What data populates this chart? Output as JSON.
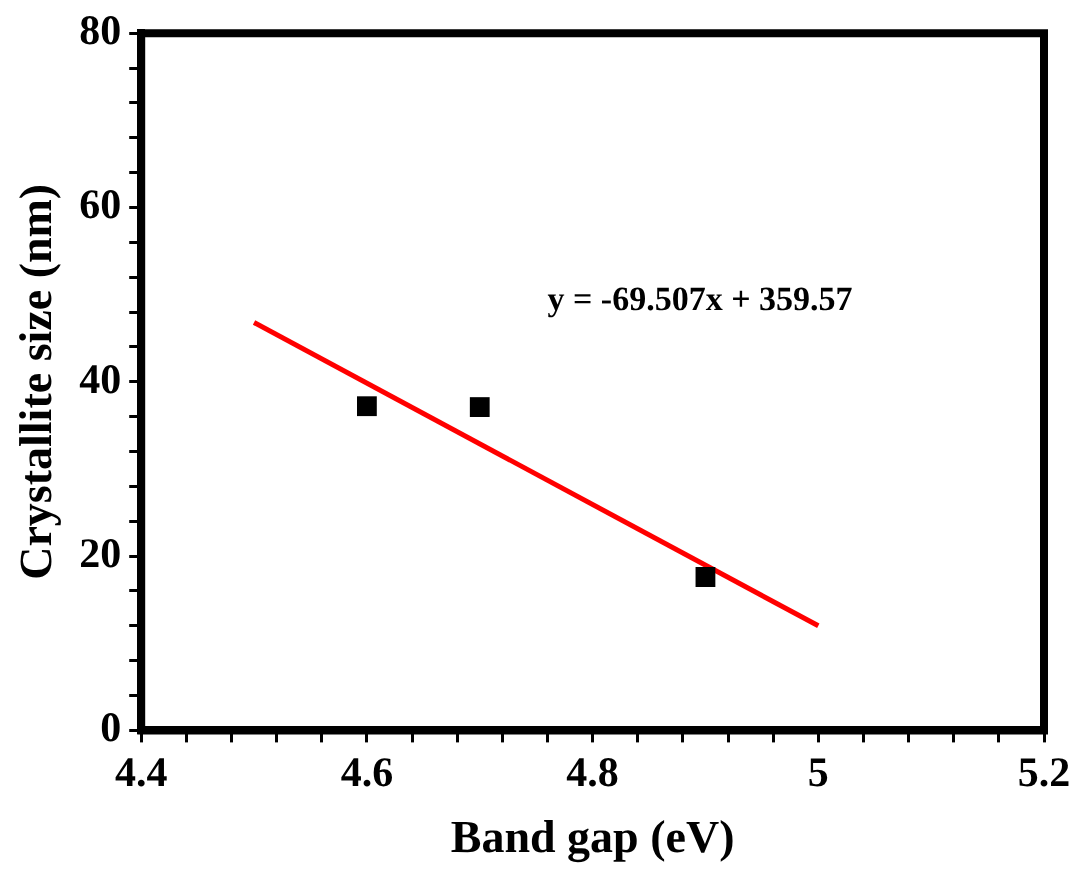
{
  "chart_data": {
    "type": "scatter",
    "xlabel": "Band gap (eV)",
    "ylabel": "Crystallite size (nm)",
    "series": [
      {
        "type": "scatter",
        "color": "#000000",
        "x": [
          4.6,
          4.7,
          4.9
        ],
        "values": [
          37.2,
          37.1,
          17.6
        ],
        "marker": "square"
      },
      {
        "type": "line",
        "color": "#ff0000",
        "x": [
          4.5,
          5
        ],
        "values": [
          46.8,
          12.0
        ],
        "marker": "none"
      }
    ],
    "annotations": [
      "y = -69.507x + 359.57"
    ],
    "xlim": [
      4.4,
      5.2
    ],
    "xticks": [
      4.4,
      {
        "value": 4.44,
        "label": null
      },
      {
        "value": 4.48,
        "label": null
      },
      {
        "value": 4.52,
        "label": null
      },
      {
        "value": 4.56,
        "label": null
      },
      4.6,
      {
        "value": 4.64,
        "label": null
      },
      {
        "value": 4.68,
        "label": null
      },
      {
        "value": 4.72,
        "label": null
      },
      {
        "value": 4.76,
        "label": null
      },
      4.8,
      {
        "value": 4.84,
        "label": null
      },
      {
        "value": 4.88,
        "label": null
      },
      {
        "value": 4.92,
        "label": null
      },
      {
        "value": 4.96,
        "label": null
      },
      5,
      {
        "value": 5.04,
        "label": null
      },
      {
        "value": 5.08,
        "label": null
      },
      {
        "value": 5.12,
        "label": null
      },
      {
        "value": 5.16,
        "label": null
      },
      5.2
    ],
    "ylim": [
      0,
      80
    ],
    "yticks": [
      0,
      {
        "value": 4,
        "label": null
      },
      {
        "value": 8,
        "label": null
      },
      {
        "value": 12,
        "label": null
      },
      {
        "value": 16,
        "label": null
      },
      20,
      {
        "value": 24,
        "label": null
      },
      {
        "value": 28,
        "label": null
      },
      {
        "value": 32,
        "label": null
      },
      {
        "value": 36,
        "label": null
      },
      40,
      {
        "value": 44,
        "label": null
      },
      {
        "value": 48,
        "label": null
      },
      {
        "value": 52,
        "label": null
      },
      {
        "value": 56,
        "label": null
      },
      60,
      {
        "value": 64,
        "label": null
      },
      {
        "value": 68,
        "label": null
      },
      {
        "value": 72,
        "label": null
      },
      {
        "value": 76,
        "label": null
      },
      80
    ],
    "grid": false,
    "legend": false
  }
}
